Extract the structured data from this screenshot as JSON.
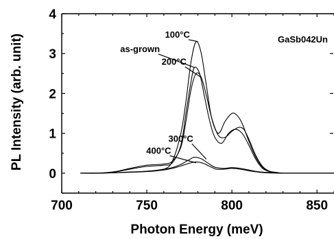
{
  "chart_data": {
    "type": "line",
    "xlabel": "Photon Energy (meV)",
    "ylabel": "PL Intensity (arb. unit)",
    "xlim": [
      700,
      860
    ],
    "ylim": [
      -0.5,
      4
    ],
    "xticks": [
      700,
      750,
      800,
      850
    ],
    "yticks": [
      0,
      1,
      2,
      3,
      4
    ],
    "annotation": "GaSb042Un",
    "grid": false,
    "series": [
      {
        "name": "100°C",
        "label_pos": [
          768,
          3.4
        ],
        "arrow_to": [
          780,
          3.3
        ],
        "x": [
          711,
          720,
          730,
          740,
          750,
          760,
          765,
          770,
          773,
          776,
          779,
          782,
          785,
          788,
          792,
          796,
          800,
          803,
          806,
          810,
          814,
          818,
          822,
          826,
          830,
          840,
          860
        ],
        "y": [
          0,
          0,
          0.01,
          0.03,
          0.05,
          0.1,
          0.3,
          1.0,
          1.8,
          2.8,
          3.3,
          3.0,
          2.2,
          1.4,
          1.0,
          1.3,
          1.5,
          1.45,
          1.25,
          0.8,
          0.4,
          0.15,
          0.05,
          0.02,
          0,
          0,
          0
        ]
      },
      {
        "name": "as-grown",
        "label_pos": [
          746,
          3.04
        ],
        "arrow_to": [
          778,
          2.65
        ],
        "x": [
          711,
          720,
          730,
          740,
          750,
          760,
          765,
          770,
          773,
          776,
          778,
          781,
          784,
          787,
          790,
          794,
          798,
          802,
          806,
          810,
          814,
          818,
          822,
          826,
          830,
          840,
          860
        ],
        "y": [
          0,
          0,
          0.02,
          0.1,
          0.17,
          0.2,
          0.26,
          0.7,
          1.5,
          2.3,
          2.65,
          2.5,
          1.9,
          1.3,
          0.9,
          0.75,
          1.0,
          1.1,
          1.0,
          0.7,
          0.35,
          0.12,
          0.04,
          0.01,
          0,
          0,
          0
        ]
      },
      {
        "name": "200°C",
        "label_pos": [
          766,
          2.72
        ],
        "arrow_to": [
          782,
          2.4
        ],
        "x": [
          711,
          720,
          730,
          740,
          750,
          760,
          765,
          770,
          773,
          776,
          779,
          782,
          785,
          788,
          792,
          796,
          800,
          804,
          807,
          810,
          814,
          818,
          822,
          826,
          830,
          840,
          860
        ],
        "y": [
          0,
          0,
          0.03,
          0.12,
          0.2,
          0.23,
          0.3,
          0.65,
          1.3,
          2.1,
          2.5,
          2.4,
          1.95,
          1.4,
          0.95,
          0.9,
          1.05,
          1.15,
          1.1,
          0.85,
          0.45,
          0.17,
          0.05,
          0.01,
          0,
          0,
          0
        ]
      },
      {
        "name": "300°C",
        "label_pos": [
          770,
          0.79
        ],
        "arrow_to": [
          785,
          0.35
        ],
        "x": [
          711,
          730,
          750,
          760,
          765,
          770,
          775,
          778,
          782,
          786,
          790,
          795,
          800,
          805,
          810,
          815,
          820,
          830,
          840,
          860
        ],
        "y": [
          0,
          0.01,
          0.05,
          0.1,
          0.14,
          0.22,
          0.34,
          0.4,
          0.36,
          0.25,
          0.15,
          0.12,
          0.14,
          0.12,
          0.08,
          0.04,
          0.02,
          0,
          0,
          0
        ]
      },
      {
        "name": "400°C",
        "label_pos": [
          757,
          0.49
        ],
        "arrow_to": [
          779,
          0.26
        ],
        "x": [
          711,
          730,
          750,
          760,
          765,
          770,
          775,
          779,
          783,
          787,
          791,
          795,
          800,
          805,
          810,
          815,
          820,
          830,
          840,
          860
        ],
        "y": [
          0,
          0.01,
          0.04,
          0.08,
          0.12,
          0.18,
          0.25,
          0.28,
          0.25,
          0.17,
          0.1,
          0.1,
          0.12,
          0.1,
          0.06,
          0.03,
          0.01,
          0,
          0,
          0
        ]
      }
    ]
  }
}
